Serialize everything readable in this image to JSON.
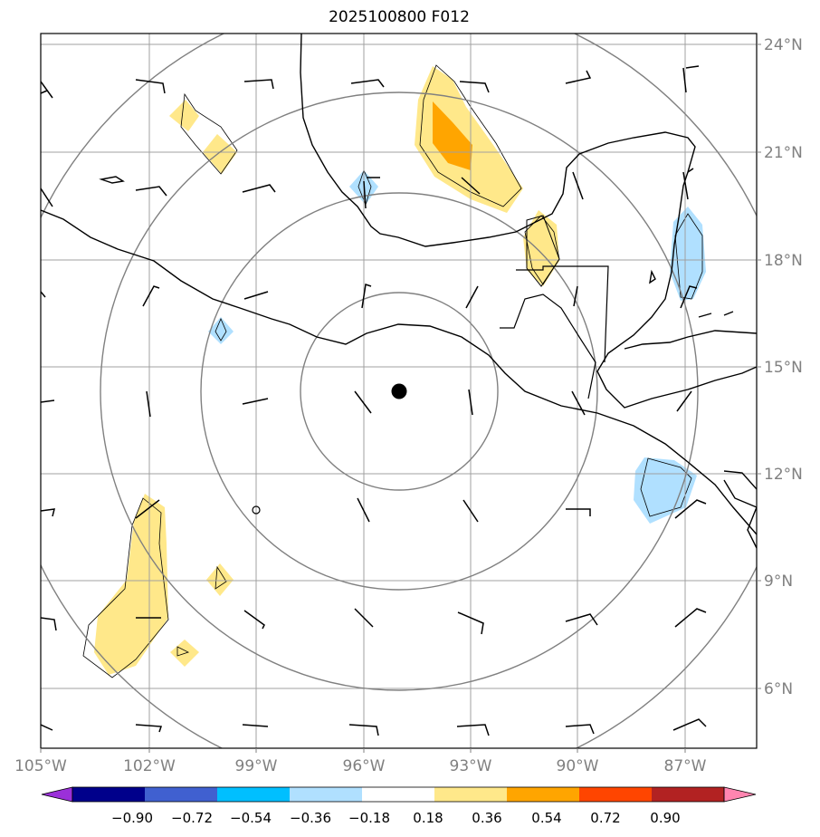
{
  "title": "2025100800 F012",
  "map": {
    "lat_labels": [
      "24°N",
      "21°N",
      "18°N",
      "15°N",
      "12°N",
      "9°N",
      "6°N"
    ],
    "lon_labels": [
      "105°W",
      "102°W",
      "99°W",
      "96°W",
      "93°W",
      "90°W",
      "87°W"
    ],
    "grid_color": "#a0a0a0",
    "ring_color": "#808080",
    "center_marker": "storm-center"
  },
  "colorbar": {
    "ticks": [
      "−0.90",
      "−0.72",
      "−0.54",
      "−0.36",
      "−0.18",
      "0.18",
      "0.36",
      "0.54",
      "0.72",
      "0.90"
    ],
    "colors": [
      "#9b30d9",
      "#00008b",
      "#4060d0",
      "#00bfff",
      "#b0e0ff",
      "#ffffff",
      "#ffe88a",
      "#ffa500",
      "#ff4500",
      "#b22222",
      "#ff85b0"
    ]
  }
}
